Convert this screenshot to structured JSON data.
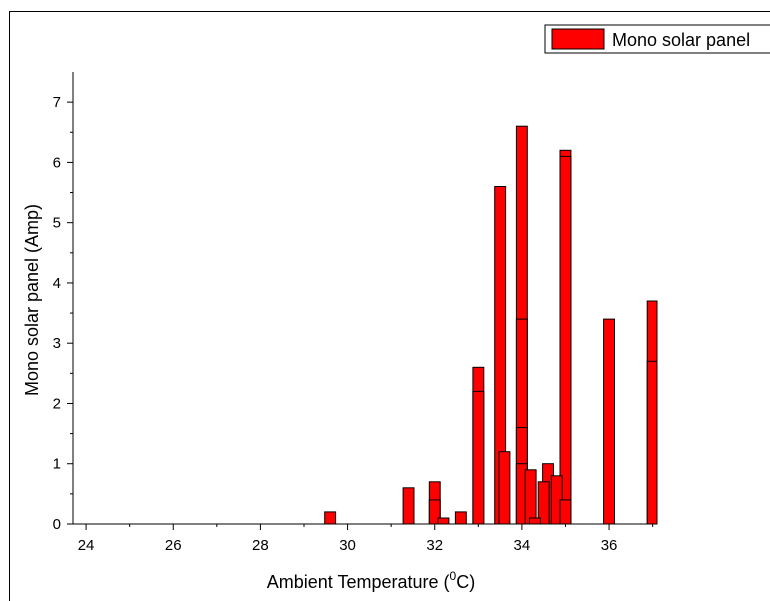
{
  "chart_data": {
    "type": "bar",
    "xlabel": "Ambient Temperature (",
    "xlabel_sup": "0",
    "xlabel_end": "C)",
    "ylabel": "Mono solar panel (Amp)",
    "legend": "Mono solar panel",
    "xlim": [
      23.7,
      37.1
    ],
    "ylim": [
      0,
      7.5
    ],
    "xticks": [
      "24",
      "26",
      "28",
      "30",
      "32",
      "34",
      "36"
    ],
    "yticks": [
      "0",
      "1",
      "2",
      "3",
      "4",
      "5",
      "6",
      "7"
    ],
    "bar_color": "#ff0000",
    "bar_width": 0.25,
    "series": [
      {
        "name": "Mono solar panel",
        "points": [
          [
            29.6,
            0.2
          ],
          [
            31.4,
            0.6
          ],
          [
            32.0,
            0.7
          ],
          [
            32.0,
            0.4
          ],
          [
            32.2,
            0.1
          ],
          [
            32.6,
            0.2
          ],
          [
            33.0,
            2.6
          ],
          [
            33.0,
            2.2
          ],
          [
            33.5,
            5.6
          ],
          [
            33.6,
            1.2
          ],
          [
            34.0,
            6.6
          ],
          [
            34.0,
            3.4
          ],
          [
            34.0,
            1.6
          ],
          [
            34.0,
            1.0
          ],
          [
            34.2,
            0.9
          ],
          [
            34.3,
            0.1
          ],
          [
            34.5,
            0.7
          ],
          [
            34.6,
            1.0
          ],
          [
            34.8,
            0.8
          ],
          [
            35.0,
            6.2
          ],
          [
            35.0,
            6.1
          ],
          [
            35.0,
            0.4
          ],
          [
            36.0,
            3.4
          ],
          [
            37.0,
            3.7
          ],
          [
            37.0,
            2.7
          ]
        ]
      }
    ]
  }
}
